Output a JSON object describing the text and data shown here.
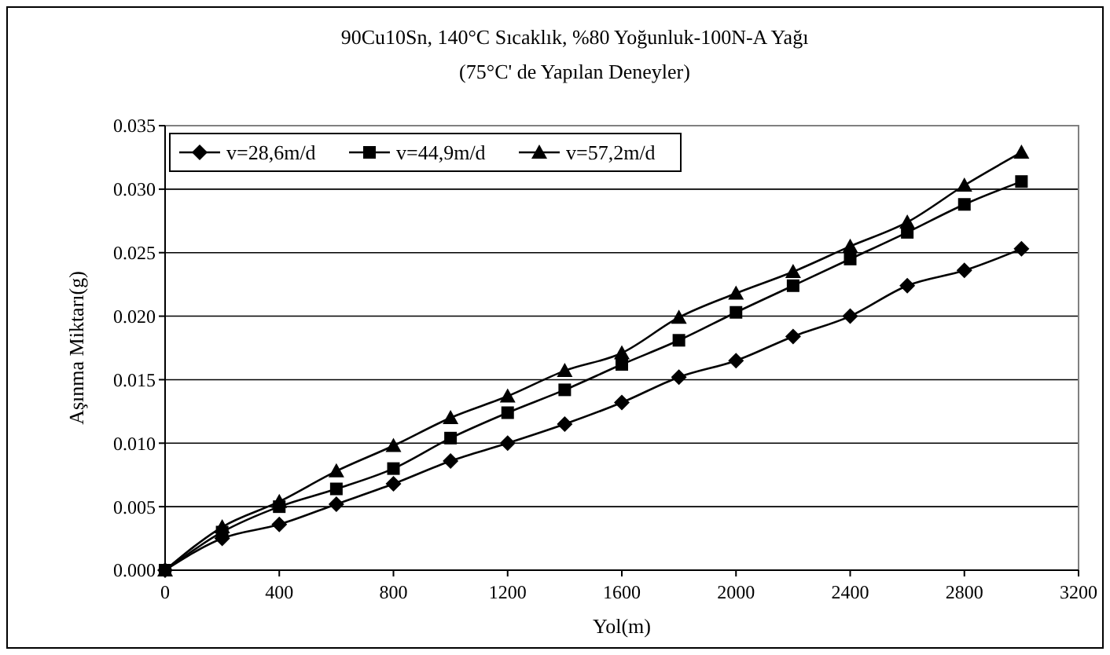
{
  "chart_data": {
    "type": "line",
    "title": "90Cu10Sn, 140°C Sıcaklık, %80 Yoğunluk-100N-A Yağı",
    "subtitle": "(75°C' de Yapılan Deneyler)",
    "xlabel": "Yol(m)",
    "ylabel": "Aşınma Miktarı(g)",
    "x": [
      0,
      200,
      400,
      600,
      800,
      1000,
      1200,
      1400,
      1600,
      1800,
      2000,
      2200,
      2400,
      2600,
      2800,
      3000
    ],
    "xlim": [
      0,
      3200
    ],
    "xticks": [
      0,
      400,
      800,
      1200,
      1600,
      2000,
      2400,
      2800,
      3200
    ],
    "ylim": [
      0,
      0.035
    ],
    "yticks": [
      {
        "value": 0,
        "label": "0.000"
      },
      {
        "value": 0.005,
        "label": "0.005"
      },
      {
        "value": 0.01,
        "label": "0.010"
      },
      {
        "value": 0.015,
        "label": "0.015"
      },
      {
        "value": 0.02,
        "label": "0.020"
      },
      {
        "value": 0.025,
        "label": "0.025"
      },
      {
        "value": 0.03,
        "label": "0.030"
      },
      {
        "value": 0.035,
        "label": "0.035"
      }
    ],
    "grid": "y",
    "legend": "top left",
    "line_style": "solid",
    "series": [
      {
        "name": "v=28,6m/d",
        "color": "#000000",
        "marker": "diamond",
        "values": [
          0,
          0.0025,
          0.0036,
          0.0052,
          0.0068,
          0.0086,
          0.01,
          0.0115,
          0.0132,
          0.0152,
          0.0165,
          0.0184,
          0.02,
          0.0224,
          0.0236,
          0.0253
        ]
      },
      {
        "name": "v=44,9m/d",
        "color": "#000000",
        "marker": "square",
        "values": [
          0,
          0.003,
          0.005,
          0.0064,
          0.008,
          0.0104,
          0.0124,
          0.0142,
          0.0162,
          0.0181,
          0.0203,
          0.0224,
          0.0245,
          0.0266,
          0.0288,
          0.0306
        ]
      },
      {
        "name": "v=57,2m/d",
        "color": "#000000",
        "marker": "triangle",
        "values": [
          0,
          0.0034,
          0.0054,
          0.0078,
          0.0098,
          0.012,
          0.0137,
          0.0157,
          0.0171,
          0.0199,
          0.0218,
          0.0235,
          0.0255,
          0.0274,
          0.0303,
          0.0329
        ]
      }
    ]
  }
}
